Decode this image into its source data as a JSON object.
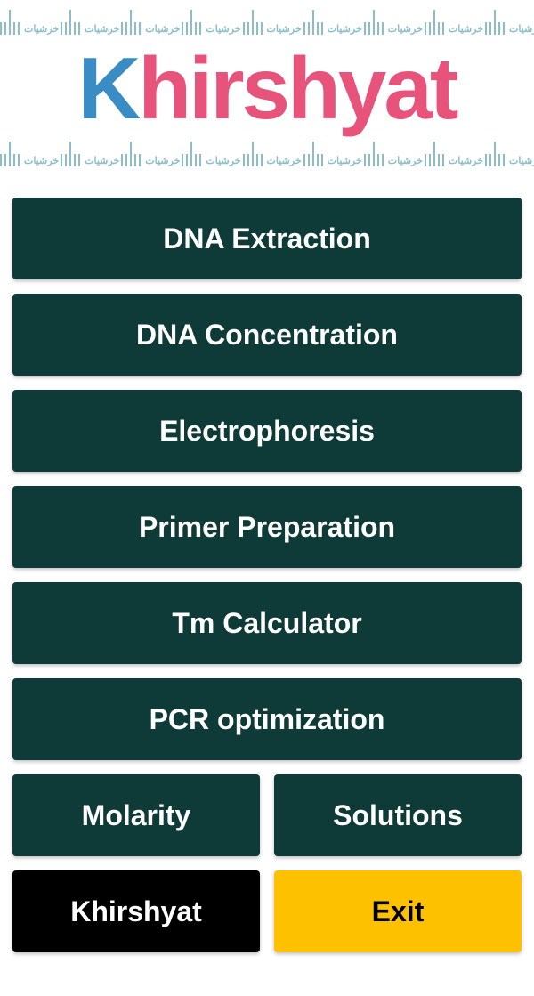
{
  "header": {
    "logo_k": "K",
    "logo_rest": "hirshyat",
    "ruler_label": "خرشيات",
    "colors": {
      "logo_k": "#3a8cc4",
      "logo_rest": "#e8537b",
      "ruler": "#8bbec9"
    }
  },
  "buttons": {
    "main": [
      {
        "label": "DNA Extraction",
        "name": "dna-extraction-button"
      },
      {
        "label": "DNA Concentration",
        "name": "dna-concentration-button"
      },
      {
        "label": "Electrophoresis",
        "name": "electrophoresis-button"
      },
      {
        "label": "Primer Preparation",
        "name": "primer-preparation-button"
      },
      {
        "label": "Tm Calculator",
        "name": "tm-calculator-button"
      },
      {
        "label": "PCR optimization",
        "name": "pcr-optimization-button"
      }
    ],
    "row1": {
      "left": {
        "label": "Molarity",
        "name": "molarity-button"
      },
      "right": {
        "label": "Solutions",
        "name": "solutions-button"
      }
    },
    "row2": {
      "left": {
        "label": "Khirshyat",
        "name": "khirshyat-button"
      },
      "right": {
        "label": "Exit",
        "name": "exit-button"
      }
    }
  },
  "styles": {
    "btn_teal_bg": "#0e3a38",
    "btn_black_bg": "#000000",
    "btn_yellow_bg": "#fdc100",
    "btn_height": 92,
    "btn_fontsize": 32,
    "gap": 16,
    "body_bg": "#ffffff"
  }
}
